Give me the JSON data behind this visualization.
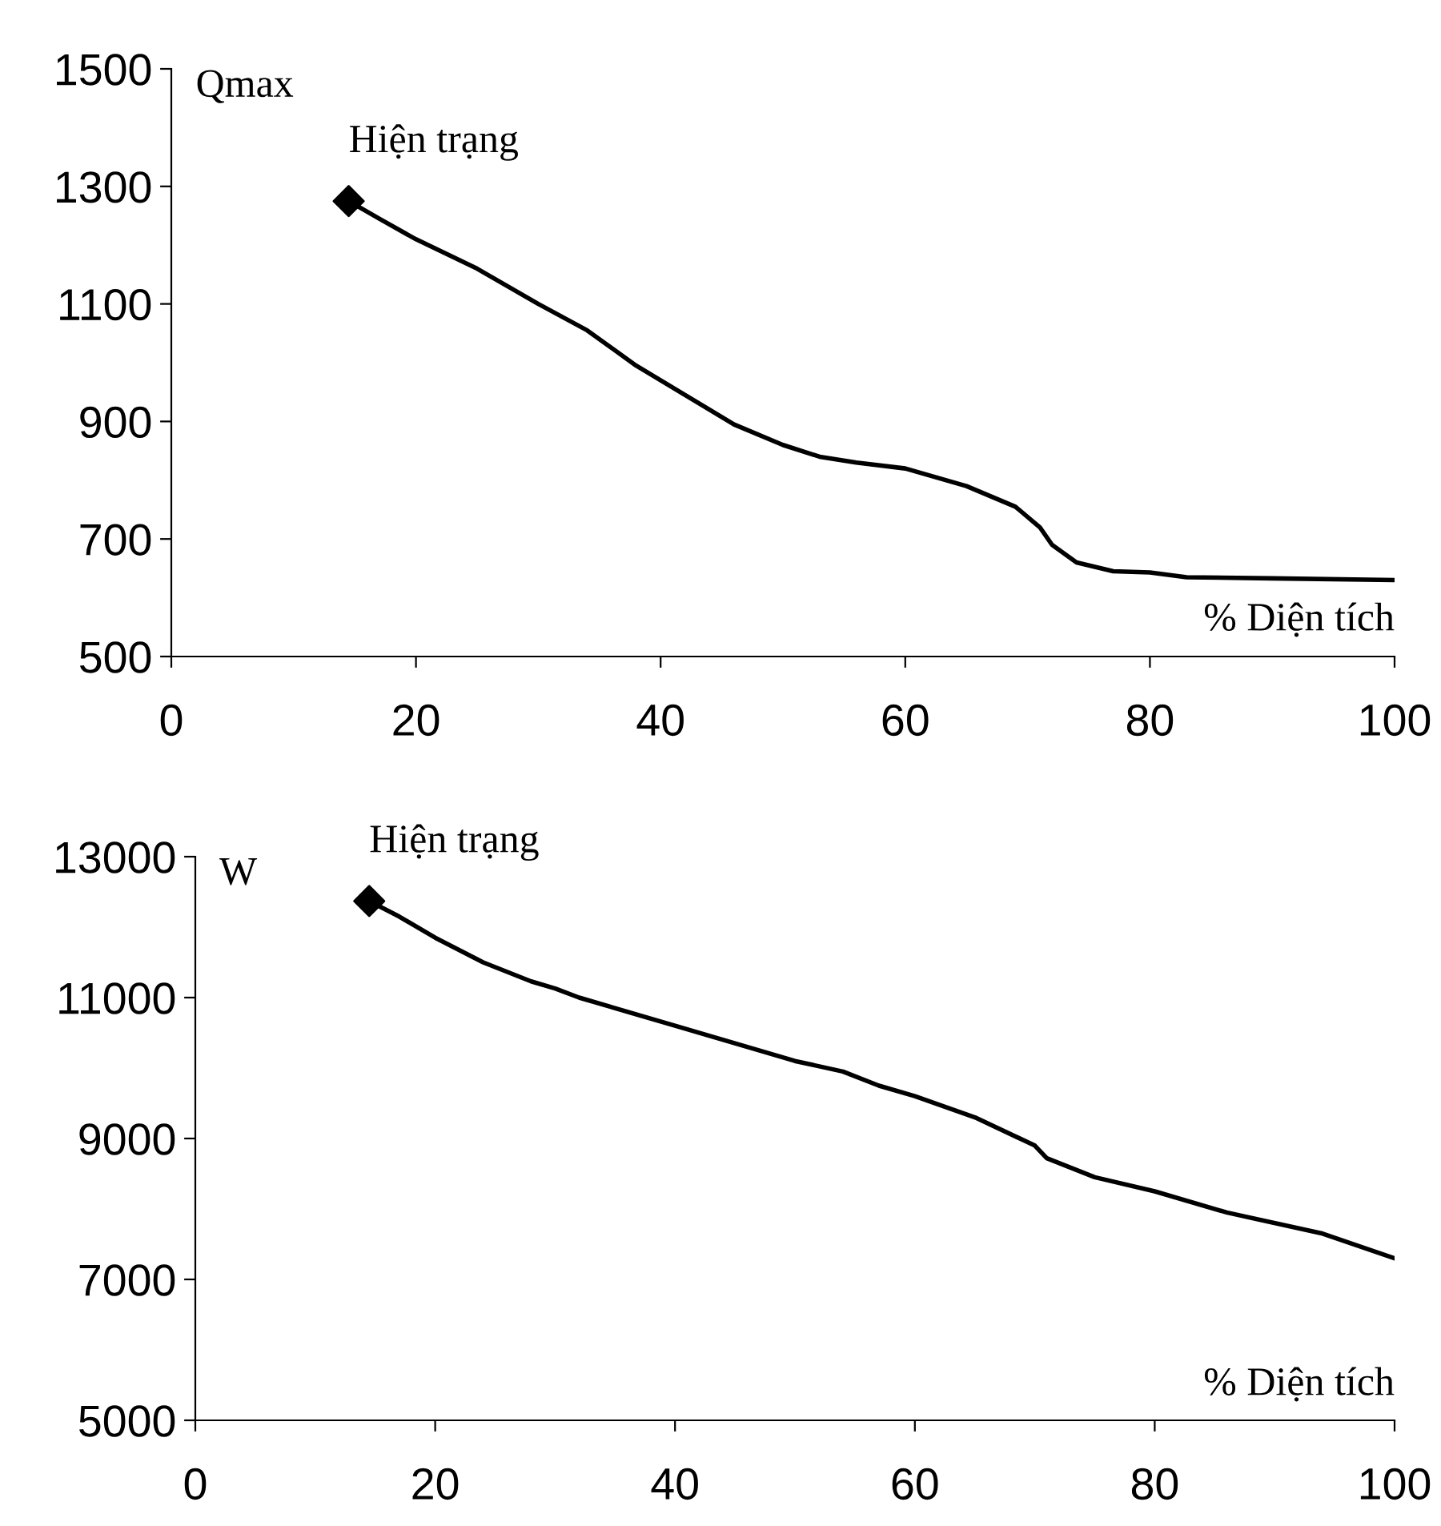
{
  "chart_data": [
    {
      "type": "line",
      "ylabel": "Qmax",
      "xlabel": "% Diện tích",
      "xlim": [
        0,
        100
      ],
      "ylim": [
        500,
        1500
      ],
      "xticks": [
        0,
        20,
        40,
        60,
        80,
        100
      ],
      "yticks": [
        500,
        700,
        900,
        1100,
        1300,
        1500
      ],
      "grid": false,
      "legend": false,
      "annotations": [
        {
          "text": "Hiện trạng",
          "x": 14.5,
          "y": 1275
        }
      ],
      "series": [
        {
          "color": "#000000",
          "marker": "none",
          "x": [
            14.5,
            17,
            20,
            25,
            30,
            34,
            38,
            42,
            46,
            50,
            53,
            56,
            60,
            65,
            69,
            71,
            72,
            74,
            77,
            80,
            83,
            90,
            100
          ],
          "values": [
            1275,
            1245,
            1210,
            1160,
            1100,
            1055,
            995,
            945,
            895,
            860,
            840,
            830,
            820,
            790,
            755,
            720,
            690,
            660,
            645,
            643,
            635,
            633,
            630
          ]
        },
        {
          "type": "scatter",
          "color": "#000000",
          "marker": "diamond",
          "x": [
            14.5
          ],
          "values": [
            1275
          ]
        }
      ]
    },
    {
      "type": "line",
      "ylabel": "W",
      "xlabel": "% Diện tích",
      "xlim": [
        0,
        100
      ],
      "ylim": [
        5000,
        13000
      ],
      "xticks": [
        0,
        20,
        40,
        60,
        80,
        100
      ],
      "yticks": [
        5000,
        7000,
        9000,
        11000,
        13000
      ],
      "grid": false,
      "legend": false,
      "annotations": [
        {
          "text": "Hiện trạng",
          "x": 14.5,
          "y": 12370
        }
      ],
      "series": [
        {
          "color": "#000000",
          "marker": "none",
          "x": [
            14.5,
            17,
            20,
            24,
            28,
            30,
            32,
            40,
            50,
            54,
            57,
            60,
            65,
            70,
            71,
            75,
            80,
            86,
            94,
            100
          ],
          "values": [
            12370,
            12150,
            11850,
            11500,
            11230,
            11130,
            11000,
            10600,
            10100,
            9950,
            9750,
            9600,
            9300,
            8900,
            8720,
            8450,
            8250,
            7950,
            7650,
            7300
          ]
        },
        {
          "type": "scatter",
          "color": "#000000",
          "marker": "diamond",
          "x": [
            14.5
          ],
          "values": [
            12370
          ]
        }
      ]
    }
  ]
}
